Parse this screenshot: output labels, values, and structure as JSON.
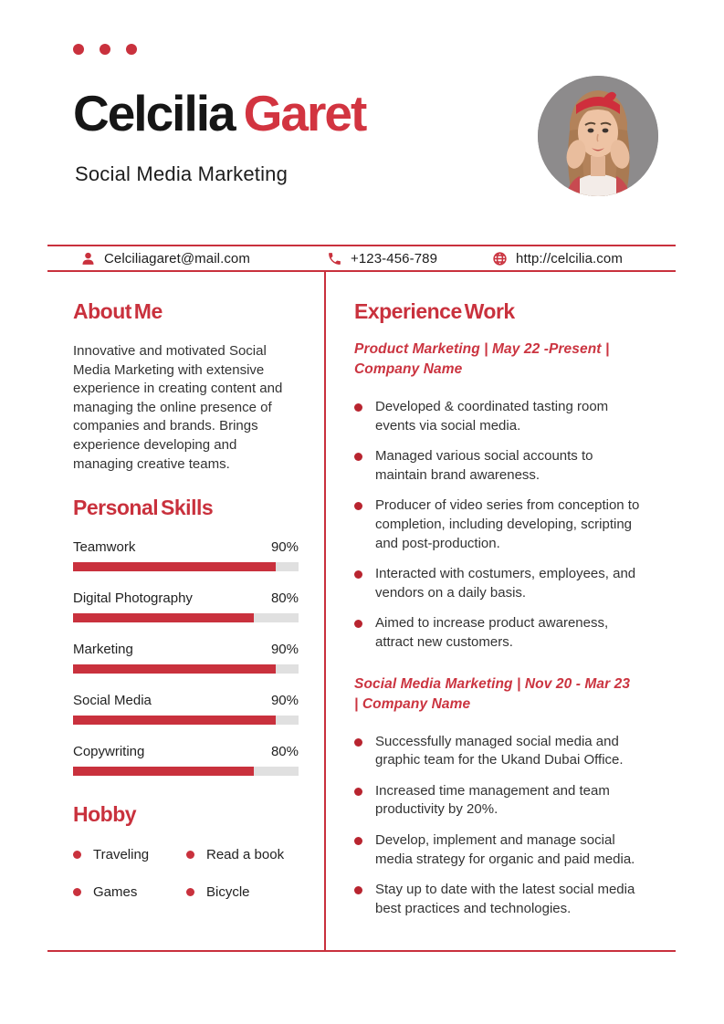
{
  "colors": {
    "accent": "#c9313d",
    "name_accent": "#d23440",
    "bullet": "#b8242f",
    "text": "#333333",
    "heading_text": "#161616",
    "bar_track": "#e0e0e0",
    "photo_background": "#8d8b8c"
  },
  "header": {
    "first_name": "Celcilia",
    "last_name": "Garet",
    "subtitle": "Social Media Marketing"
  },
  "contact": {
    "email": "Celciliagaret@mail.com",
    "phone": "+123-456-789",
    "website": "http://celcilia.com"
  },
  "about": {
    "heading": "About Me",
    "text": "Innovative and motivated Social Media Marketing with extensive experience in creating content and managing the online presence of companies and brands. Brings experience developing and managing creative teams."
  },
  "skills": {
    "heading": "Personal Skills",
    "items": [
      {
        "label": "Teamwork",
        "percent": 90,
        "percent_label": "90%"
      },
      {
        "label": "Digital Photography",
        "percent": 80,
        "percent_label": "80%"
      },
      {
        "label": "Marketing",
        "percent": 90,
        "percent_label": "90%"
      },
      {
        "label": "Social Media",
        "percent": 90,
        "percent_label": "90%"
      },
      {
        "label": "Copywriting",
        "percent": 80,
        "percent_label": "80%"
      }
    ]
  },
  "hobby": {
    "heading": "Hobby",
    "items": [
      "Traveling",
      "Read a book",
      "Games",
      "Bicycle"
    ]
  },
  "experience": {
    "heading": "Experience Work",
    "jobs": [
      {
        "title": "Product Marketing | May 22 -Present | Company Name",
        "bullets": [
          "Developed & coordinated tasting room events via social media.",
          "Managed various social accounts to maintain brand awareness.",
          "Producer of video series from conception to completion, including developing, scripting and post-production.",
          "Interacted with costumers, employees, and vendors on a daily basis.",
          "Aimed to increase product awareness, attract new customers."
        ]
      },
      {
        "title": "Social Media Marketing | Nov 20 - Mar 23 | Company Name",
        "bullets": [
          "Successfully managed social media and graphic team for the Ukand Dubai Office.",
          "Increased time management and team productivity by 20%.",
          "Develop, implement and manage social media strategy for organic and paid media.",
          "Stay up to date with the latest social media best practices and technologies."
        ]
      }
    ]
  }
}
